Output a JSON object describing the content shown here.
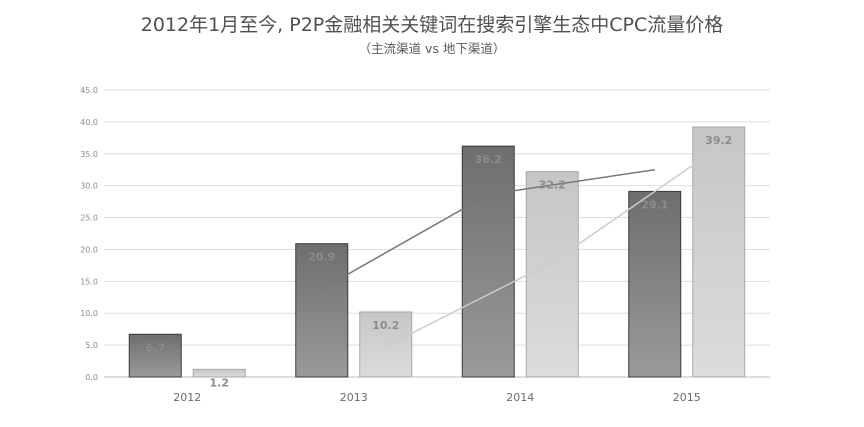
{
  "chart_data": {
    "type": "bar",
    "title": "2012年1月至今, P2P金融相关关键词在搜索引擎生态中CPC流量价格",
    "subtitle": "（主流渠道 vs 地下渠道）",
    "categories": [
      "2012",
      "2013",
      "2014",
      "2015"
    ],
    "series": [
      {
        "name": "",
        "values": [
          6.7,
          20.9,
          36.2,
          29.1
        ],
        "color": "#858585"
      },
      {
        "name": "",
        "values": [
          1.2,
          10.2,
          32.2,
          39.2
        ],
        "color": "#d2d2d2"
      }
    ],
    "trendlines": [
      {
        "color": "#777777",
        "points": [
          [
            2013,
            13.8
          ],
          [
            2014,
            28.6
          ],
          [
            2015,
            32.5
          ]
        ]
      },
      {
        "color": "#cccccc",
        "points": [
          [
            2013,
            4.8
          ],
          [
            2014,
            18.0
          ],
          [
            2015,
            36.0
          ]
        ]
      }
    ],
    "yticks": [
      "0.0",
      "5.0",
      "10.0",
      "15.0",
      "20.0",
      "25.0",
      "30.0",
      "35.0",
      "40.0",
      "45.0"
    ],
    "ylim": [
      0,
      45
    ],
    "grid": true,
    "legend": "none"
  }
}
